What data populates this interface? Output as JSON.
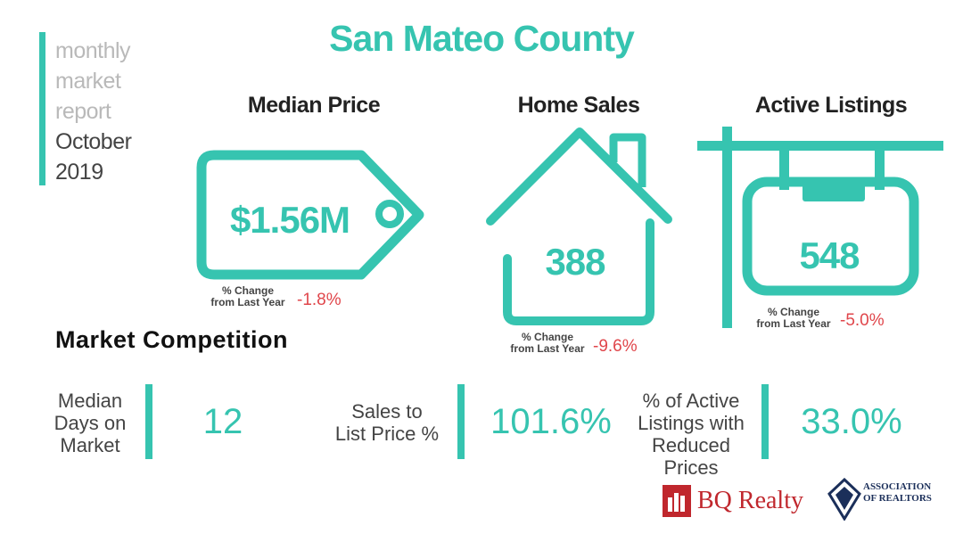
{
  "report": {
    "line1": "monthly",
    "line2": "market",
    "line3": "report",
    "month": "October",
    "year": "2019"
  },
  "title": "San Mateo County",
  "metrics": {
    "median_price": {
      "title": "Median Price",
      "value": "$1.56M",
      "change_label_1": "% Change",
      "change_label_2": "from Last Year",
      "change": "-1.8%"
    },
    "home_sales": {
      "title": "Home Sales",
      "value": "388",
      "change_label_1": "% Change",
      "change_label_2": "from Last Year",
      "change": "-9.6%"
    },
    "active_listings": {
      "title": "Active Listings",
      "value": "548",
      "change_label_1": "% Change",
      "change_label_2": "from Last Year",
      "change": "-5.0%"
    }
  },
  "competition": {
    "title": "Market Competition",
    "days": {
      "label_1": "Median",
      "label_2": "Days on",
      "label_3": "Market",
      "value": "12"
    },
    "sales_to_list": {
      "label_1": "Sales to",
      "label_2": "List Price %",
      "value": "101.6%"
    },
    "reduced": {
      "label_1": "% of Active",
      "label_2": "Listings with",
      "label_3": "Reduced Prices",
      "value": "33.0%"
    }
  },
  "footer": {
    "brand": "BQ Realty",
    "assoc_1": "ASSOCIATION",
    "assoc_2": "OF REALTORS"
  },
  "colors": {
    "accent": "#36c4b0",
    "negative": "#e0464b",
    "brand": "#c0272d"
  }
}
